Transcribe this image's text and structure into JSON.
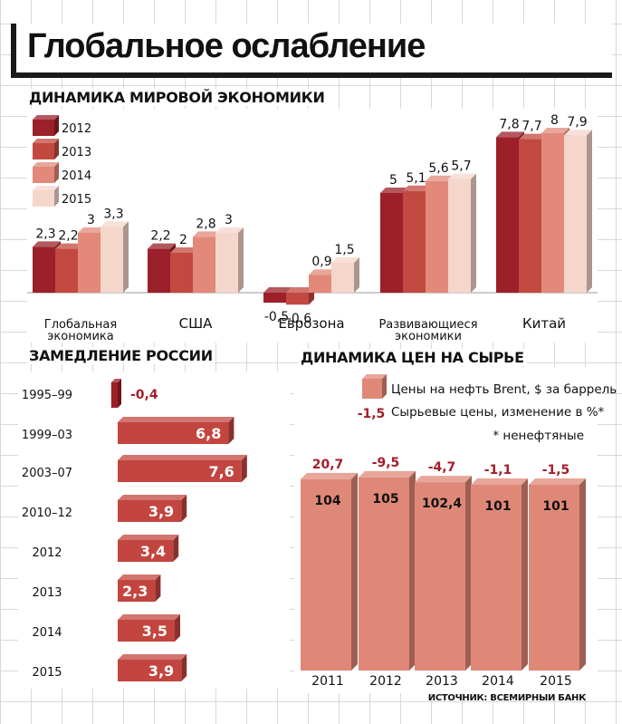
{
  "title": "Глобальное ослабление",
  "source": "ИСТОЧНИК: ВСЕМИРНЫЙ БАНК",
  "colors": {
    "y2012": "#9b2029",
    "y2013": "#c2493f",
    "y2014": "#e2897a",
    "y2015": "#f4d6cb",
    "russia": "#c3453f",
    "prices": "#e08878",
    "neg_label": "#a31e2a"
  },
  "chart_data": [
    {
      "type": "bar",
      "title": "ДИНАМИКА МИРОВОЙ ЭКОНОМИКИ",
      "categories": [
        "Глобальная экономика",
        "США",
        "Еврозона",
        "Развивающиеся экономики",
        "Китай"
      ],
      "category_lines": [
        [
          "Глобальная",
          "экономика"
        ],
        [
          "США"
        ],
        [
          "Еврозона"
        ],
        [
          "Развивающиеся",
          "экономики"
        ],
        [
          "Китай"
        ]
      ],
      "series": [
        {
          "name": "2012",
          "values": [
            2.3,
            2.2,
            -0.5,
            5,
            7.8
          ]
        },
        {
          "name": "2013",
          "values": [
            2.2,
            2,
            -0.6,
            5.1,
            7.7
          ]
        },
        {
          "name": "2014",
          "values": [
            3,
            2.8,
            0.9,
            5.6,
            8
          ]
        },
        {
          "name": "2015",
          "values": [
            3.3,
            3,
            1.5,
            5.7,
            7.9
          ]
        }
      ],
      "labels": [
        [
          "2,3",
          "2,2",
          "3",
          "3,3"
        ],
        [
          "2,2",
          "2",
          "2,8",
          "3"
        ],
        [
          "-0,5",
          "-0,6",
          "0,9",
          "1,5"
        ],
        [
          "5",
          "5,1",
          "5,6",
          "5,7"
        ],
        [
          "7,8",
          "7,7",
          "8",
          "7,9"
        ]
      ],
      "legend": [
        "2012",
        "2013",
        "2014",
        "2015"
      ],
      "ylabel": "",
      "xlabel": ""
    },
    {
      "type": "bar",
      "orientation": "horizontal",
      "title": "ЗАМЕДЛЕНИЕ РОССИИ",
      "categories": [
        "1995–99",
        "1999–03",
        "2003–07",
        "2010–12",
        "2012",
        "2013",
        "2014",
        "2015"
      ],
      "values": [
        -0.4,
        6.8,
        7.6,
        3.9,
        3.4,
        2.3,
        3.5,
        3.9
      ],
      "labels": [
        "-0,4",
        "6,8",
        "7,6",
        "3,9",
        "3,4",
        "2,3",
        "3,5",
        "3,9"
      ]
    },
    {
      "type": "bar",
      "title": "ДИНАМИКА ЦЕН НА СЫРЬЕ",
      "categories": [
        "2011",
        "2012",
        "2013",
        "2014",
        "2015"
      ],
      "series": [
        {
          "name": "Цены на нефть Brent, $ за баррель",
          "values": [
            104,
            105,
            102.4,
            101,
            101
          ],
          "labels": [
            "104",
            "105",
            "102,4",
            "101",
            "101"
          ]
        },
        {
          "name": "Сырьевые цены, изменение в %*",
          "values": [
            20.7,
            -9.5,
            -4.7,
            -1.1,
            -1.5
          ],
          "labels": [
            "20,7",
            "-9,5",
            "-4,7",
            "-1,1",
            "-1,5"
          ]
        }
      ],
      "legend": [
        "Цены на нефть Brent, $ за баррель",
        "Сырьевые цены, изменение в %*"
      ],
      "legend_marker_value": "-1,5",
      "footnote": "* ненефтяные"
    }
  ]
}
